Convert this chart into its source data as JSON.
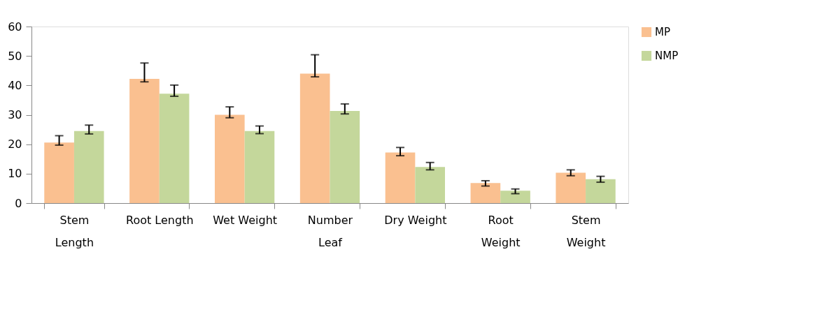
{
  "chart_data": {
    "type": "bar",
    "categories": [
      "Stem\nLength",
      "Root Length",
      "Wet Weight",
      "Number\nLeaf",
      "Dry Weight",
      "Root\nWeight",
      "Stem\nWeight"
    ],
    "series": [
      {
        "name": "MP",
        "color": "#fac090",
        "values": [
          20.6,
          42.2,
          30.0,
          44.0,
          17.2,
          6.8,
          10.3
        ],
        "errors": [
          [
            19.7,
            22.9
          ],
          [
            41.2,
            47.6
          ],
          [
            29.0,
            32.7
          ],
          [
            42.9,
            50.4
          ],
          [
            16.1,
            18.9
          ],
          [
            5.8,
            7.6
          ],
          [
            9.3,
            11.3
          ]
        ]
      },
      {
        "name": "NMP",
        "color": "#c4d79b",
        "values": [
          24.5,
          37.2,
          24.5,
          31.3,
          12.3,
          4.2,
          8.1
        ],
        "errors": [
          [
            23.5,
            26.5
          ],
          [
            36.3,
            40.1
          ],
          [
            23.6,
            26.2
          ],
          [
            30.3,
            33.7
          ],
          [
            11.3,
            13.8
          ],
          [
            3.2,
            4.8
          ],
          [
            7.1,
            9.1
          ]
        ]
      }
    ],
    "ylim": [
      0,
      60
    ],
    "yticks": [
      0,
      10,
      20,
      30,
      40,
      50,
      60
    ],
    "grid": false,
    "legend": "right"
  }
}
